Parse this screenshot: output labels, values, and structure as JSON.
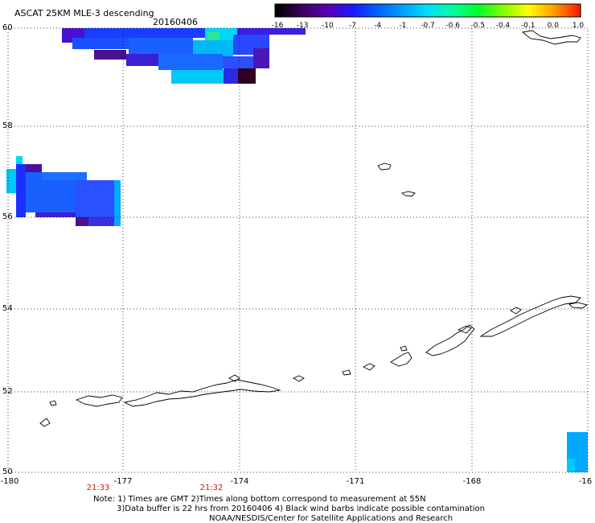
{
  "title": "ASCAT 25KM MLE-3 descending",
  "date": "20160406",
  "colorbar": {
    "labels": [
      "-16",
      "-13",
      "-10",
      "-7",
      "-4",
      "-1",
      "-0.7",
      "-0.6",
      "-0.5",
      "-0.4",
      "-0.1",
      "0.0",
      "1.0"
    ],
    "colors": [
      "#000000",
      "#3c0060",
      "#5a00b4",
      "#1a1aff",
      "#0060ff",
      "#00a0ff",
      "#00e0ff",
      "#00ffa0",
      "#00ff30",
      "#80ff00",
      "#ffff00",
      "#ffa000",
      "#ff2000"
    ]
  },
  "axes": {
    "lat_labels": [
      "60",
      "58",
      "56",
      "54",
      "52",
      "50"
    ],
    "lon_labels": [
      "-180",
      "-177",
      "-174",
      "-171",
      "-168",
      "-16"
    ],
    "time_labels": [
      "21:33",
      "21:32"
    ]
  },
  "notes": {
    "line1": "Note: 1) Times are GMT 2)Times along bottom correspond to measurement at 55N",
    "line2": "3)Data buffer is 22 hrs from 20160406 4) Black wind barbs indicate possible contamination",
    "line3": "NOAA/NESDIS/Center for Satellite Applications and Research"
  }
}
